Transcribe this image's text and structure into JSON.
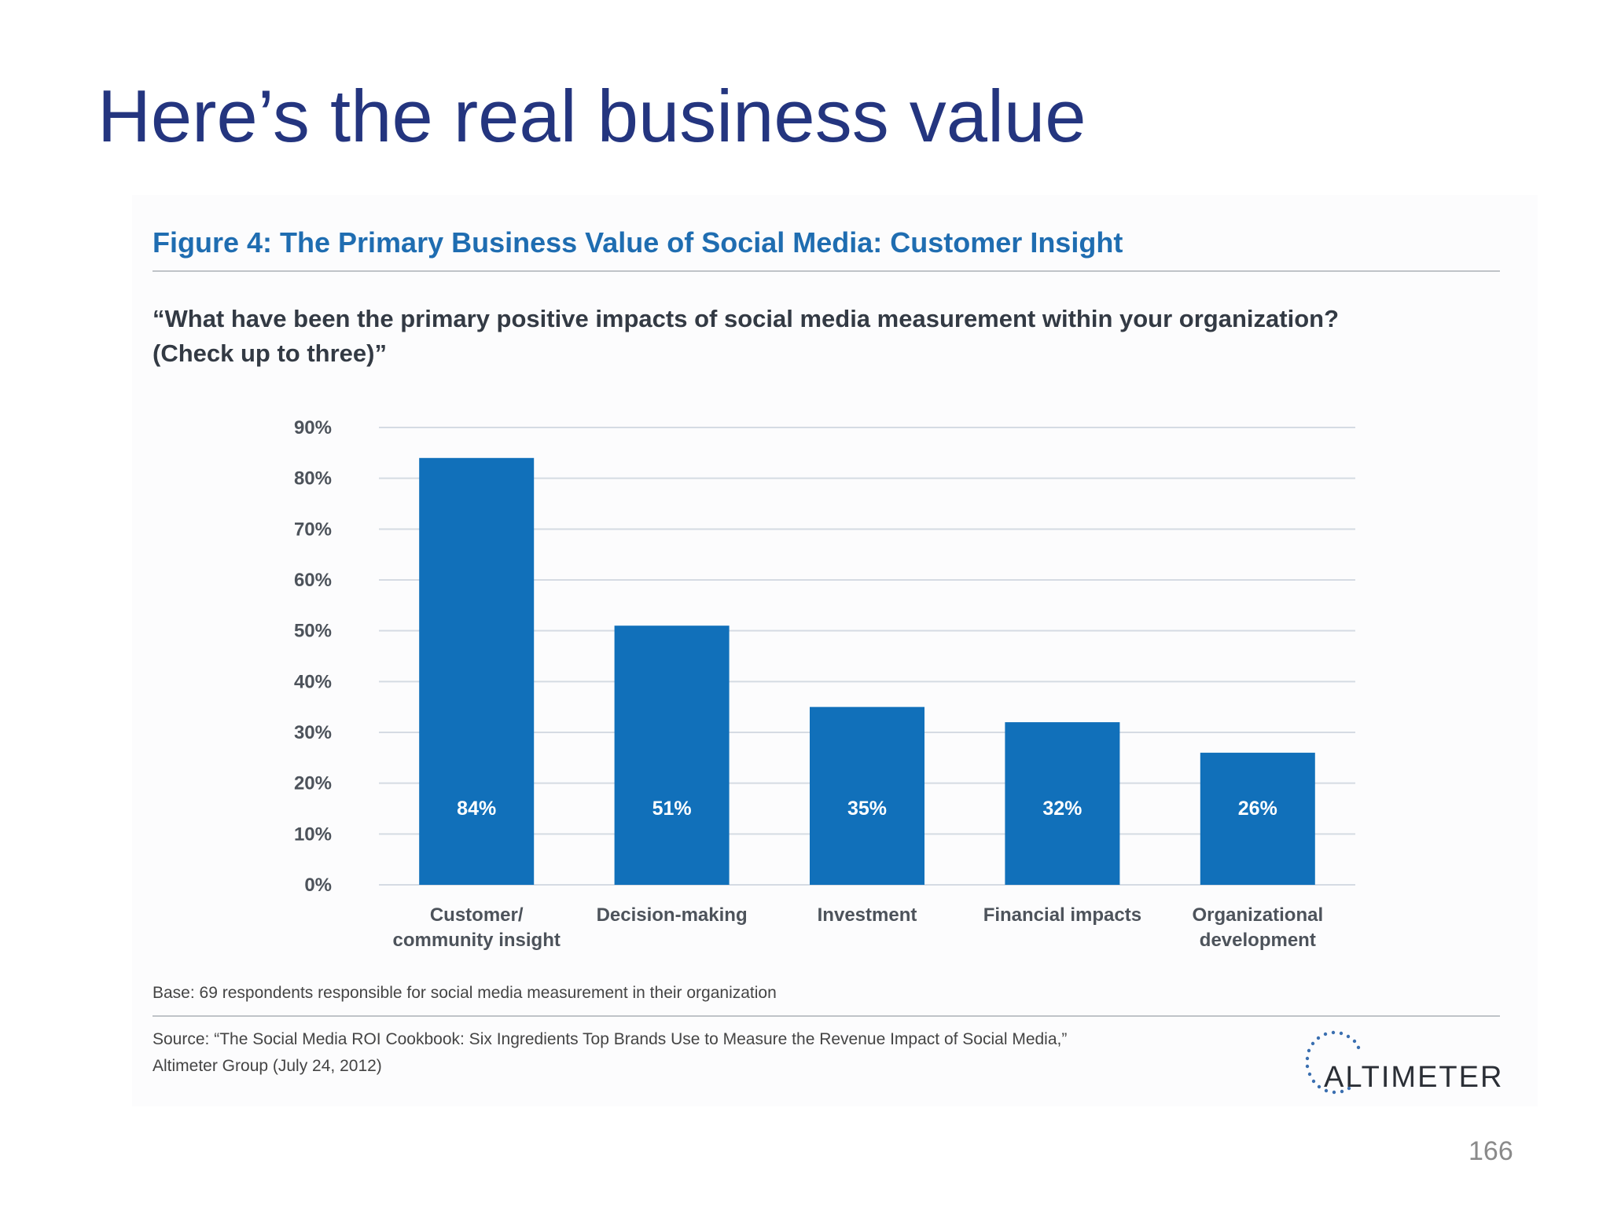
{
  "slide": {
    "title": "Here’s the real business value",
    "page_number": "166"
  },
  "figure": {
    "title": "Figure 4: The Primary Business Value of Social Media: Customer Insight",
    "question_line1": "“What have been the primary positive impacts of social media measurement within your organization?",
    "question_line2": "(Check up to three)”",
    "base": "Base: 69 respondents responsible for social media measurement in their organization",
    "source_line1": "Source: “The Social Media ROI Cookbook: Six Ingredients Top Brands Use to Measure the Revenue Impact of Social Media,”",
    "source_line2": "Altimeter Group (July 24, 2012)"
  },
  "logo": {
    "text": "ALTIMETER"
  },
  "colors": {
    "title": "#24357f",
    "figure_title": "#1f6db1",
    "bar": "#1170ba",
    "gridline": "#d5dbe3",
    "tick_label": "#4d535b",
    "category_label": "#4d535b"
  },
  "chart_data": {
    "type": "bar",
    "categories": [
      [
        "Customer/",
        "community insight"
      ],
      [
        "Decision-making"
      ],
      [
        "Investment"
      ],
      [
        "Financial impacts"
      ],
      [
        "Organizational",
        "development"
      ]
    ],
    "values": [
      84,
      51,
      35,
      32,
      26
    ],
    "value_labels": [
      "84%",
      "51%",
      "35%",
      "32%",
      "26%"
    ],
    "ylim": [
      0,
      90
    ],
    "yticks": [
      0,
      10,
      20,
      30,
      40,
      50,
      60,
      70,
      80,
      90
    ],
    "ytick_labels": [
      "0%",
      "10%",
      "20%",
      "30%",
      "40%",
      "50%",
      "60%",
      "70%",
      "80%",
      "90%"
    ],
    "grid": true,
    "legend": "none"
  }
}
